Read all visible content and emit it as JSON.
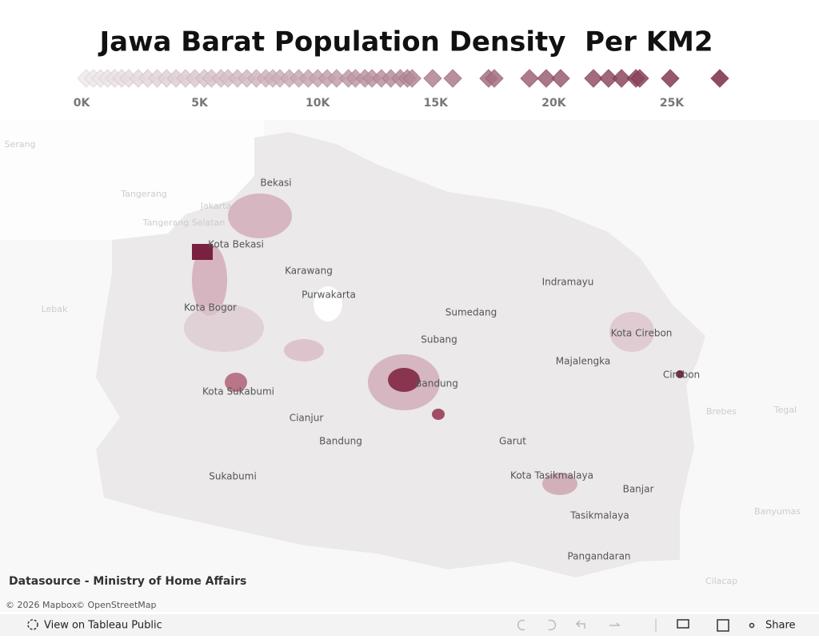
{
  "title": "Jawa Barat Population Density  Per KM2",
  "chart_data": {
    "type": "strip",
    "xlim": [
      0,
      27500
    ],
    "xticks": [
      {
        "value": 0,
        "label": "0K"
      },
      {
        "value": 5000,
        "label": "5K"
      },
      {
        "value": 10000,
        "label": "10K"
      },
      {
        "value": 15000,
        "label": "15K"
      },
      {
        "value": 20000,
        "label": "20K"
      },
      {
        "value": 25000,
        "label": "25K"
      }
    ],
    "values": [
      200,
      500,
      800,
      1100,
      1400,
      1700,
      2000,
      2400,
      2800,
      3200,
      3600,
      4000,
      4400,
      4800,
      5200,
      5500,
      5900,
      6200,
      6600,
      7000,
      7400,
      7800,
      8100,
      8400,
      8800,
      9200,
      9600,
      10000,
      10400,
      10800,
      11300,
      11600,
      12000,
      12300,
      12700,
      13100,
      13500,
      13800,
      14000,
      14870,
      15720,
      17240,
      17480,
      18970,
      19680,
      20290,
      21680,
      22320,
      22870,
      23480,
      23640,
      24930,
      27030
    ],
    "color_low": "#efebed",
    "color_high": "#7b2d45"
  },
  "map": {
    "labels": [
      "Bekasi",
      "Kota Bekasi",
      "Karawang",
      "Purwakarta",
      "Kota Bogor",
      "Indramayu",
      "Sumedang",
      "Subang",
      "Kota Cirebon",
      "Majalengka",
      "Cirebon",
      "Bandung",
      "Kota Sukabumi",
      "Cianjur",
      "Bandung",
      "Garut",
      "Sukabumi",
      "Kota Tasikmalaya",
      "Banjar",
      "Tasikmalaya",
      "Pangandaran"
    ],
    "faint_labels": [
      "Serang",
      "Tangerang",
      "Jakarta",
      "Tangerang Selatan",
      "Lebak",
      "Brebes",
      "Tegal",
      "Banyumas",
      "Cilacap"
    ]
  },
  "footer": {
    "source": "Datasource - Ministry of Home Affairs",
    "attribution": [
      "© 2026 Mapbox",
      "© OpenStreetMap"
    ]
  },
  "toolbar": {
    "view": "View on Tableau Public",
    "share": "Share"
  }
}
